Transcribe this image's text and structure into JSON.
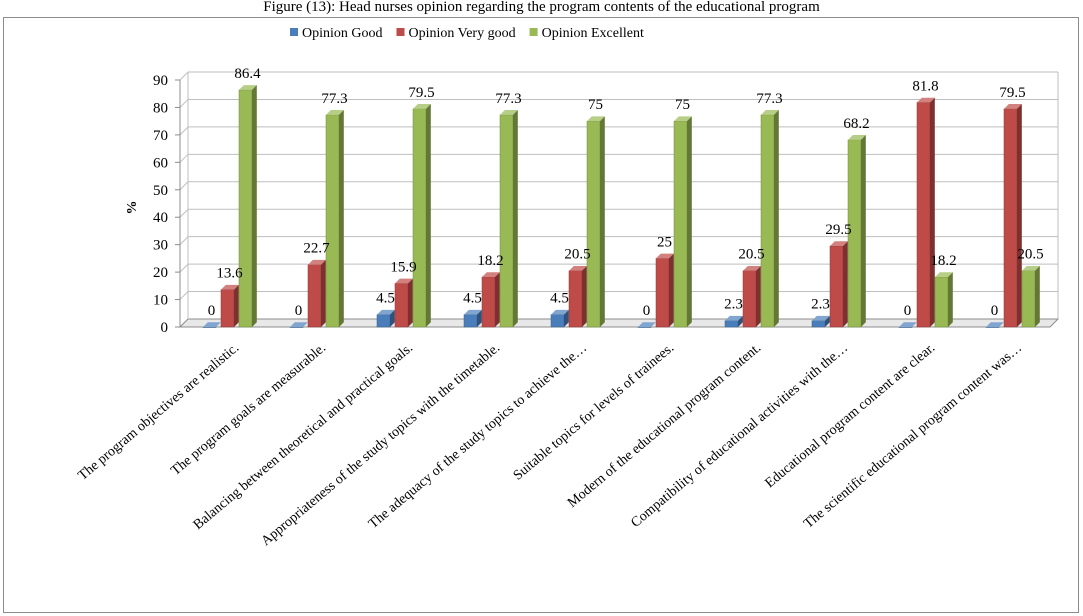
{
  "caption": "Figure (13): Head nurses opinion regarding the program contents of the educational program",
  "chart_data": {
    "type": "bar",
    "title": "",
    "xlabel": "",
    "ylabel": "%",
    "ylim": [
      0,
      90
    ],
    "ytick_step": 10,
    "grid": true,
    "legend_position": "top",
    "categories": [
      "The program objectives are realistic.",
      "The program goals are measurable.",
      "Balancing between theoretical and practical goals.",
      "Appropriateness of the study topics with the timetable.",
      "The adequacy of the study topics to achieve the…",
      "Suitable topics for levels of trainees.",
      "Modern of the educational program content.",
      "Compatibility of educational activities  with the…",
      "Educational program content are clear.",
      "The scientific educational program content was…"
    ],
    "series": [
      {
        "name": "Opinion Good",
        "color": "#4a7ebb",
        "values": [
          0,
          0,
          4.5,
          4.5,
          4.5,
          0,
          2.3,
          2.3,
          0,
          0
        ]
      },
      {
        "name": "Opinion Very good",
        "color": "#be4b48",
        "values": [
          13.6,
          22.7,
          15.9,
          18.2,
          20.5,
          25,
          20.5,
          29.5,
          81.8,
          79.5
        ]
      },
      {
        "name": "Opinion Excellent",
        "color": "#98b954",
        "values": [
          86.4,
          77.3,
          79.5,
          77.3,
          75,
          75,
          77.3,
          68.2,
          18.2,
          20.5
        ]
      }
    ]
  }
}
